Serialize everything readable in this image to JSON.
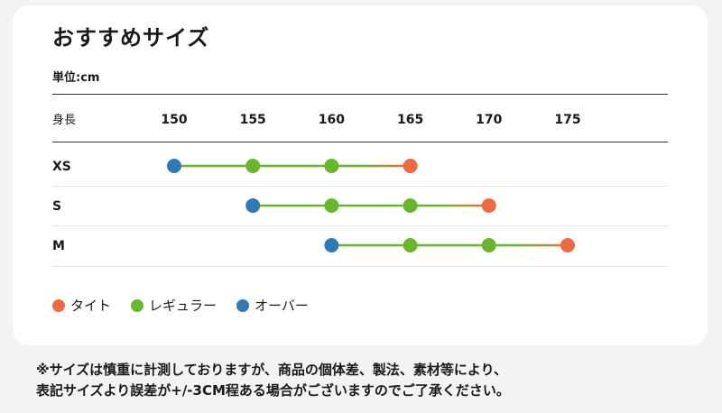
{
  "title": "おすすめサイズ",
  "unit_label": "単位:cm",
  "colors": {
    "tight": "#ee6a43",
    "regular": "#6ab52e",
    "over": "#2f79b5",
    "background": "#f3f3f3",
    "card": "#ffffff"
  },
  "chart_data": {
    "type": "range",
    "xlabel": "身長",
    "x_ticks": [
      150,
      155,
      160,
      165,
      170,
      175
    ],
    "xlim": [
      150,
      175
    ],
    "categories": [
      "XS",
      "S",
      "M"
    ],
    "series": [
      {
        "name": "オーバー",
        "color": "#2f79b5",
        "values": [
          150,
          155,
          160
        ]
      },
      {
        "name": "レギュラー",
        "color": "#6ab52e",
        "values_low": [
          155,
          160,
          165
        ],
        "values_high": [
          160,
          165,
          170
        ]
      },
      {
        "name": "タイト",
        "color": "#ee6a43",
        "values": [
          165,
          170,
          175
        ]
      }
    ],
    "legend_position": "bottom-left"
  },
  "legend": [
    {
      "label": "タイト",
      "color": "#ee6a43"
    },
    {
      "label": "レギュラー",
      "color": "#6ab52e"
    },
    {
      "label": "オーバー",
      "color": "#2f79b5"
    }
  ],
  "note": {
    "line1": "※サイズは慎重に計測しておりますが、商品の個体差、製法、素材等により、",
    "line2": "表記サイズより誤差が+/-3CM程ある場合がございますのでご了承ください。"
  }
}
